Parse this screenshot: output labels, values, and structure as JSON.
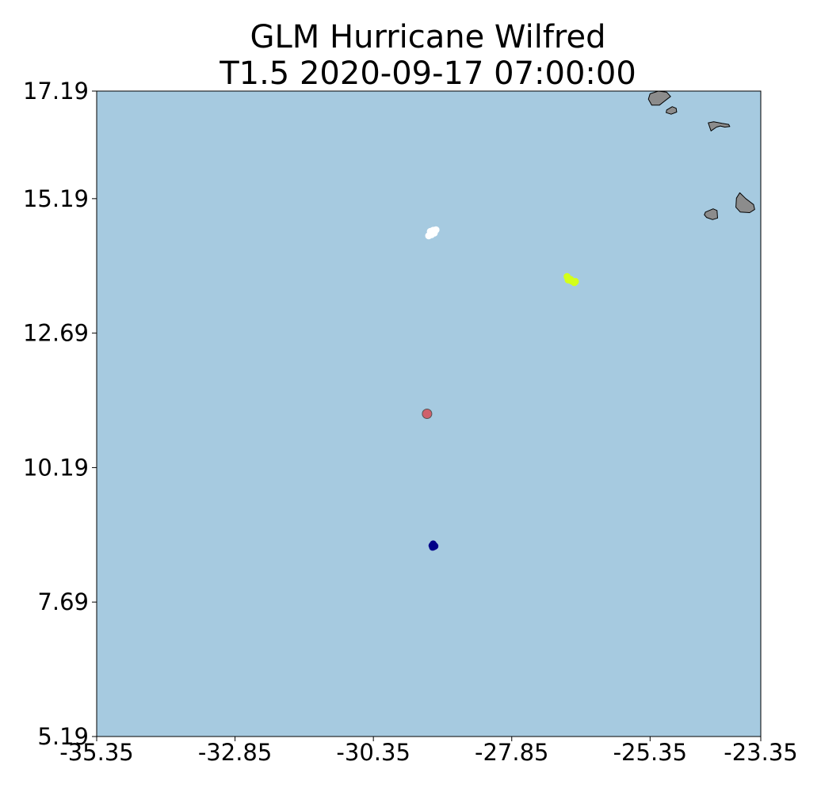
{
  "chart_data": {
    "type": "scatter",
    "title_line1": "GLM Hurricane Wilfred",
    "title_line2": "T1.5 2020-09-17 07:00:00",
    "xlabel": "",
    "ylabel": "",
    "xlim": [
      -35.35,
      -23.35
    ],
    "ylim": [
      5.19,
      17.19
    ],
    "x_ticks": [
      -35.35,
      -32.85,
      -30.35,
      -27.85,
      -25.35,
      -23.35
    ],
    "x_tick_labels": [
      "-35.35",
      "-32.85",
      "-30.35",
      "-27.85",
      "-25.35",
      "-23.35"
    ],
    "y_ticks": [
      17.19,
      15.19,
      12.69,
      10.19,
      7.69,
      5.19
    ],
    "y_tick_labels": [
      "17.19",
      "15.19",
      "12.69",
      "10.19",
      "7.69",
      "5.19"
    ],
    "grid": false,
    "colors": {
      "ocean": "#a6cae0",
      "land": "#8c8c8c",
      "coast": "#000000"
    },
    "series": [
      {
        "color": "#ffffff",
        "points": [
          [
            -29.32,
            14.58
          ],
          [
            -29.27,
            14.6
          ],
          [
            -29.22,
            14.61
          ],
          [
            -29.3,
            14.52
          ],
          [
            -29.25,
            14.55
          ],
          [
            -29.35,
            14.5
          ],
          [
            -29.28,
            14.57
          ]
        ]
      },
      {
        "color": "#d4ff1a",
        "points": [
          [
            -26.85,
            13.74
          ],
          [
            -26.83,
            13.68
          ],
          [
            -26.77,
            13.66
          ],
          [
            -26.72,
            13.63
          ],
          [
            -26.7,
            13.65
          ],
          [
            -26.79,
            13.69
          ]
        ]
      },
      {
        "color": "#d0606b",
        "points": [
          [
            -29.38,
            11.19
          ]
        ]
      },
      {
        "color": "#000088",
        "points": [
          [
            -29.27,
            8.77
          ],
          [
            -29.25,
            8.74
          ],
          [
            -29.29,
            8.74
          ],
          [
            -29.26,
            8.72
          ],
          [
            -29.24,
            8.73
          ],
          [
            -29.28,
            8.71
          ]
        ]
      }
    ],
    "islands": [
      [
        [
          -25.35,
          17.14
        ],
        [
          -25.2,
          17.19
        ],
        [
          -25.05,
          17.17
        ],
        [
          -24.98,
          17.09
        ],
        [
          -25.08,
          17.01
        ],
        [
          -25.18,
          16.93
        ],
        [
          -25.32,
          16.93
        ],
        [
          -25.38,
          17.04
        ]
      ],
      [
        [
          -25.05,
          16.84
        ],
        [
          -24.95,
          16.9
        ],
        [
          -24.88,
          16.87
        ],
        [
          -24.87,
          16.8
        ],
        [
          -24.97,
          16.76
        ],
        [
          -25.06,
          16.79
        ]
      ],
      [
        [
          -24.3,
          16.6
        ],
        [
          -24.2,
          16.62
        ],
        [
          -24.05,
          16.59
        ],
        [
          -23.93,
          16.57
        ],
        [
          -23.91,
          16.53
        ],
        [
          -24.0,
          16.52
        ],
        [
          -24.08,
          16.54
        ],
        [
          -24.15,
          16.52
        ],
        [
          -24.25,
          16.45
        ]
      ],
      [
        [
          -23.73,
          15.3
        ],
        [
          -23.62,
          15.19
        ],
        [
          -23.48,
          15.08
        ],
        [
          -23.46,
          14.99
        ],
        [
          -23.55,
          14.93
        ],
        [
          -23.72,
          14.94
        ],
        [
          -23.8,
          15.03
        ],
        [
          -23.79,
          15.2
        ]
      ],
      [
        [
          -24.35,
          14.94
        ],
        [
          -24.21,
          15.0
        ],
        [
          -24.14,
          14.97
        ],
        [
          -24.13,
          14.83
        ],
        [
          -24.22,
          14.8
        ],
        [
          -24.33,
          14.84
        ],
        [
          -24.37,
          14.89
        ]
      ]
    ]
  }
}
